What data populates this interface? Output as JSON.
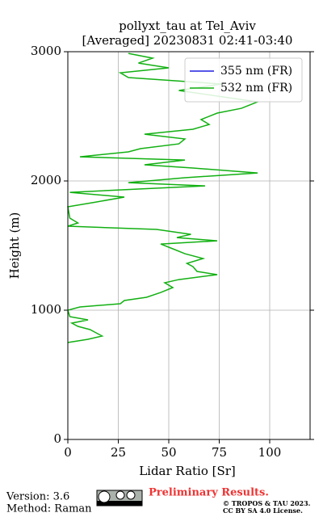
{
  "chart_data": {
    "type": "line",
    "orientation": "vertical",
    "title": [
      "pollyxt_tau at Tel_Aviv",
      "[Averaged] 20230831 02:41-03:40"
    ],
    "xlabel": "Lidar Ratio [Sr]",
    "ylabel": "Height (m)",
    "x": [
      750,
      775,
      800,
      825,
      850,
      875,
      900,
      925,
      950,
      1000,
      1025,
      1050,
      1075,
      1100,
      1137,
      1175,
      1212,
      1237,
      1275,
      1300,
      1337,
      1362,
      1400,
      1437,
      1475,
      1512,
      1537,
      1562,
      1587,
      1625,
      1650,
      1675,
      1712,
      1800,
      1837,
      1875,
      1912,
      1937,
      1962,
      1987,
      2025,
      2062,
      2100,
      2125,
      2162,
      2187,
      2225,
      2250,
      2287,
      2325,
      2362,
      2400,
      2437,
      2475,
      2525,
      2562,
      2612,
      2650,
      2700,
      2750,
      2800,
      2837,
      2875,
      2912,
      2950,
      2987
    ],
    "series": [
      {
        "name": "355 nm (FR)",
        "color": "#1f1fe0",
        "values": [
          null,
          null,
          null,
          null,
          null,
          null,
          null,
          null,
          null,
          null,
          null,
          null,
          null,
          null,
          null,
          null,
          null,
          null,
          null,
          null,
          null,
          null,
          null,
          null,
          null,
          null,
          null,
          null,
          null,
          null,
          null,
          null,
          null,
          null,
          null,
          null,
          null,
          null,
          null,
          null,
          null,
          null,
          null,
          null,
          null,
          null,
          null,
          null,
          null,
          null,
          null,
          null,
          null,
          null,
          null,
          null,
          null,
          null,
          null,
          null,
          null,
          null,
          null,
          null,
          null,
          null
        ]
      },
      {
        "name": "532 nm (FR)",
        "color": "#12b012",
        "values": [
          0,
          10,
          17,
          14,
          11,
          5,
          2,
          10,
          1,
          0,
          6,
          26,
          28,
          39,
          46,
          52,
          48,
          55,
          74,
          64,
          62,
          59,
          67,
          58,
          52,
          46,
          74,
          54,
          61,
          44,
          0,
          5,
          1,
          0,
          14,
          28,
          1,
          34,
          68,
          30,
          58,
          94,
          62,
          38,
          58,
          6,
          30,
          36,
          55,
          58,
          38,
          62,
          70,
          66,
          74,
          86,
          94,
          77,
          55,
          76,
          30,
          26,
          50,
          35,
          42,
          30
        ]
      }
    ],
    "xlim": [
      0,
      120
    ],
    "ylim": [
      0,
      3000
    ],
    "xticks": [
      0,
      25,
      50,
      75,
      100
    ],
    "yticks": [
      0,
      1000,
      2000,
      3000
    ],
    "grid": true,
    "legend": "upper right"
  },
  "footer": {
    "version": "Version: 3.6",
    "method": "Method: Raman",
    "status": "Preliminary Results.",
    "copyright": "© TROPOS & TAU 2023.",
    "license": "CC BY SA 4.0 License."
  }
}
